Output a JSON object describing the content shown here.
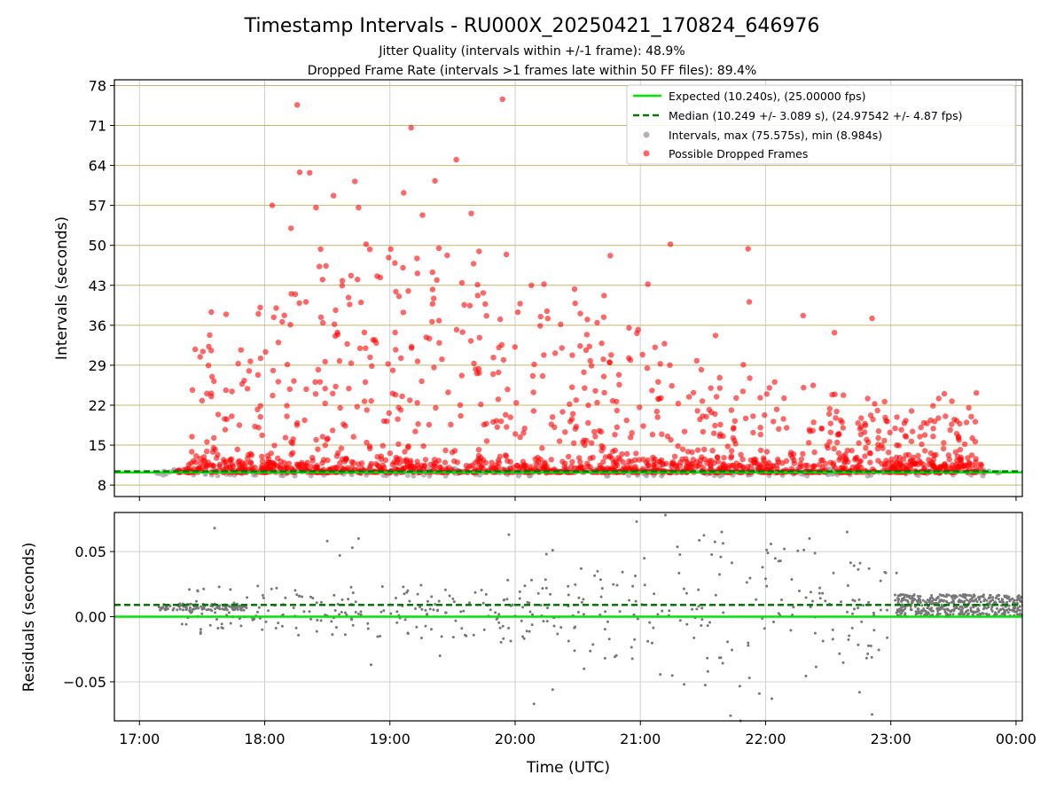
{
  "figure": {
    "title": "Timestamp Intervals - RU000X_20250421_170824_646976",
    "subtitle_1": "Jitter Quality (intervals within +/-1 frame): 48.9%",
    "subtitle_2": "Dropped Frame Rate (intervals >1 frames late within 50 FF files): 89.4%"
  },
  "chart_data": [
    {
      "type": "scatter",
      "panel": "top",
      "ylabel": "Intervals (seconds)",
      "ylim": [
        6,
        79
      ],
      "yticks": [
        8,
        15,
        22,
        29,
        36,
        43,
        50,
        57,
        64,
        71,
        78
      ],
      "ygrid_color": "#c8b46e",
      "xgrid": true,
      "xlim_hours": [
        16.8,
        24.05
      ],
      "legend_position": "top-right",
      "series": [
        {
          "name": "Expected (10.240s), (25.00000 fps)",
          "kind": "hline",
          "value": 10.24,
          "color": "#00e600",
          "style": "solid"
        },
        {
          "name": "Median (10.249 +/- 3.089 s), (24.97542 +/- 4.87 fps)",
          "kind": "hline",
          "value": 10.249,
          "color": "#007a00",
          "style": "dashed"
        },
        {
          "name": "Intervals, max (75.575s), min (8.984s)",
          "kind": "scatter",
          "color": "#a0a0a0",
          "max": 75.575,
          "min": 8.984
        },
        {
          "name": "Possible Dropped Frames",
          "kind": "scatter",
          "color": "#ff0000",
          "points": [
            [
              18.26,
              74.6
            ],
            [
              19.9,
              75.6
            ],
            [
              19.17,
              70.6
            ],
            [
              19.53,
              65.0
            ],
            [
              18.28,
              62.8
            ],
            [
              18.36,
              62.7
            ],
            [
              18.72,
              61.2
            ],
            [
              19.36,
              61.3
            ],
            [
              19.11,
              59.2
            ],
            [
              18.55,
              58.7
            ],
            [
              18.06,
              57.0
            ],
            [
              18.41,
              56.6
            ],
            [
              18.75,
              56.6
            ],
            [
              19.26,
              55.3
            ],
            [
              19.65,
              55.6
            ],
            [
              18.21,
              53.0
            ],
            [
              18.81,
              50.2
            ],
            [
              18.84,
              49.3
            ],
            [
              19.93,
              48.4
            ],
            [
              21.24,
              50.2
            ],
            [
              21.86,
              49.4
            ],
            [
              18.49,
              46.4
            ],
            [
              19.04,
              46.9
            ],
            [
              18.62,
              43.8
            ],
            [
              18.69,
              44.7
            ],
            [
              19.22,
              45.1
            ],
            [
              19.7,
              43.1
            ],
            [
              20.13,
              43.0
            ],
            [
              20.23,
              43.2
            ],
            [
              20.76,
              48.2
            ],
            [
              21.06,
              43.2
            ],
            [
              17.58,
              27.0
            ],
            [
              17.5,
              22.8
            ],
            [
              17.68,
              19.6
            ],
            [
              17.95,
              38.0
            ],
            [
              18.14,
              36.6
            ],
            [
              18.33,
              40.1
            ],
            [
              18.45,
              37.4
            ],
            [
              18.77,
              40.0
            ],
            [
              19.35,
              40.7
            ],
            [
              20.71,
              41.2
            ],
            [
              21.6,
              34.2
            ],
            [
              21.87,
              40.1
            ],
            [
              22.3,
              37.7
            ],
            [
              22.55,
              34.7
            ],
            [
              22.85,
              37.2
            ],
            [
              21.45,
              29.8
            ],
            [
              20.92,
              29.9
            ],
            [
              20.2,
              35.9
            ],
            [
              19.87,
              32.1
            ],
            [
              19.58,
              34.8
            ]
          ],
          "note_cluster_values": [
            10.4,
            10.8,
            11.5,
            12.5,
            13.5,
            15.0,
            17.0,
            19.0,
            21.0,
            23.0,
            25.0,
            27.0,
            29.0
          ]
        }
      ]
    },
    {
      "type": "scatter",
      "panel": "bottom",
      "xlabel": "Time (UTC)",
      "ylabel": "Residuals (seconds)",
      "ylim": [
        -0.08,
        0.08
      ],
      "yticks": [
        -0.05,
        0.0,
        0.05
      ],
      "ytick_labels": [
        "−0.05",
        "0.00",
        "0.05"
      ],
      "xticks_hours": [
        17,
        18,
        19,
        20,
        21,
        22,
        23,
        24
      ],
      "xtick_labels": [
        "17:00",
        "18:00",
        "19:00",
        "20:00",
        "21:00",
        "22:00",
        "23:00",
        "00:00"
      ],
      "series": [
        {
          "name": "expected",
          "kind": "hline",
          "value": 0.0,
          "color": "#00e600",
          "style": "solid"
        },
        {
          "name": "median",
          "kind": "hline",
          "value": 0.009,
          "color": "#007a00",
          "style": "dashed"
        },
        {
          "name": "residuals",
          "kind": "scatter",
          "color": "#777777",
          "points": [
            [
              17.6,
              0.068
            ],
            [
              18.5,
              0.058
            ],
            [
              18.6,
              0.047
            ],
            [
              18.7,
              0.053
            ],
            [
              18.75,
              0.06
            ],
            [
              19.95,
              0.063
            ],
            [
              20.25,
              0.048
            ],
            [
              20.3,
              0.051
            ],
            [
              20.97,
              0.073
            ],
            [
              21.2,
              0.078
            ],
            [
              21.65,
              0.065
            ],
            [
              22.15,
              0.052
            ],
            [
              22.35,
              0.06
            ],
            [
              22.65,
              0.065
            ],
            [
              20.15,
              -0.067
            ],
            [
              20.3,
              -0.056
            ],
            [
              21.35,
              -0.052
            ],
            [
              21.72,
              -0.076
            ],
            [
              21.8,
              -0.08
            ],
            [
              21.95,
              -0.059
            ],
            [
              22.05,
              -0.063
            ],
            [
              22.75,
              -0.058
            ],
            [
              22.85,
              -0.075
            ],
            [
              18.85,
              -0.037
            ],
            [
              19.4,
              -0.03
            ],
            [
              20.55,
              -0.04
            ]
          ]
        }
      ]
    }
  ]
}
